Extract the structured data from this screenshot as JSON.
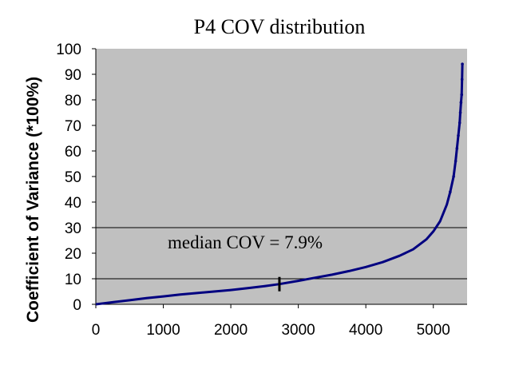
{
  "chart_data": {
    "type": "scatter",
    "title": "P4 COV distribution",
    "xlabel": "",
    "ylabel": "Coefficient of Variance (*100%)",
    "xlim": [
      0,
      5500
    ],
    "ylim": [
      0,
      100
    ],
    "x_ticks": [
      "0",
      "1000",
      "2000",
      "3000",
      "4000",
      "5000"
    ],
    "y_ticks": [
      "0",
      "10",
      "20",
      "30",
      "40",
      "50",
      "60",
      "70",
      "80",
      "90",
      "100"
    ],
    "grid": "horizontal at 10 and 30",
    "plot_background": "#c0c0c0",
    "series_color": "#000080",
    "annotation": "median COV = 7.9%",
    "median_marker": {
      "x": 2720,
      "y": 7.9
    },
    "series": [
      {
        "x": [
          0,
          250,
          500,
          750,
          1000,
          1250,
          1500,
          1750,
          2000,
          2250,
          2500,
          2720,
          3000,
          3250,
          3500,
          3750,
          4000,
          4250,
          4500,
          4700,
          4900,
          5000,
          5100,
          5200,
          5250,
          5300,
          5330,
          5350,
          5370,
          5390,
          5400,
          5410,
          5420,
          5425,
          5430
        ],
        "y": [
          0,
          0.8,
          1.6,
          2.4,
          3.1,
          3.8,
          4.4,
          5.0,
          5.6,
          6.3,
          7.1,
          7.9,
          9.2,
          10.4,
          11.6,
          13.0,
          14.6,
          16.5,
          19.0,
          21.5,
          25.5,
          28.5,
          32.5,
          39.0,
          44.0,
          50.0,
          56.0,
          61.0,
          66.0,
          71.0,
          75.0,
          79.0,
          82.0,
          88.0,
          94.0
        ]
      }
    ]
  }
}
